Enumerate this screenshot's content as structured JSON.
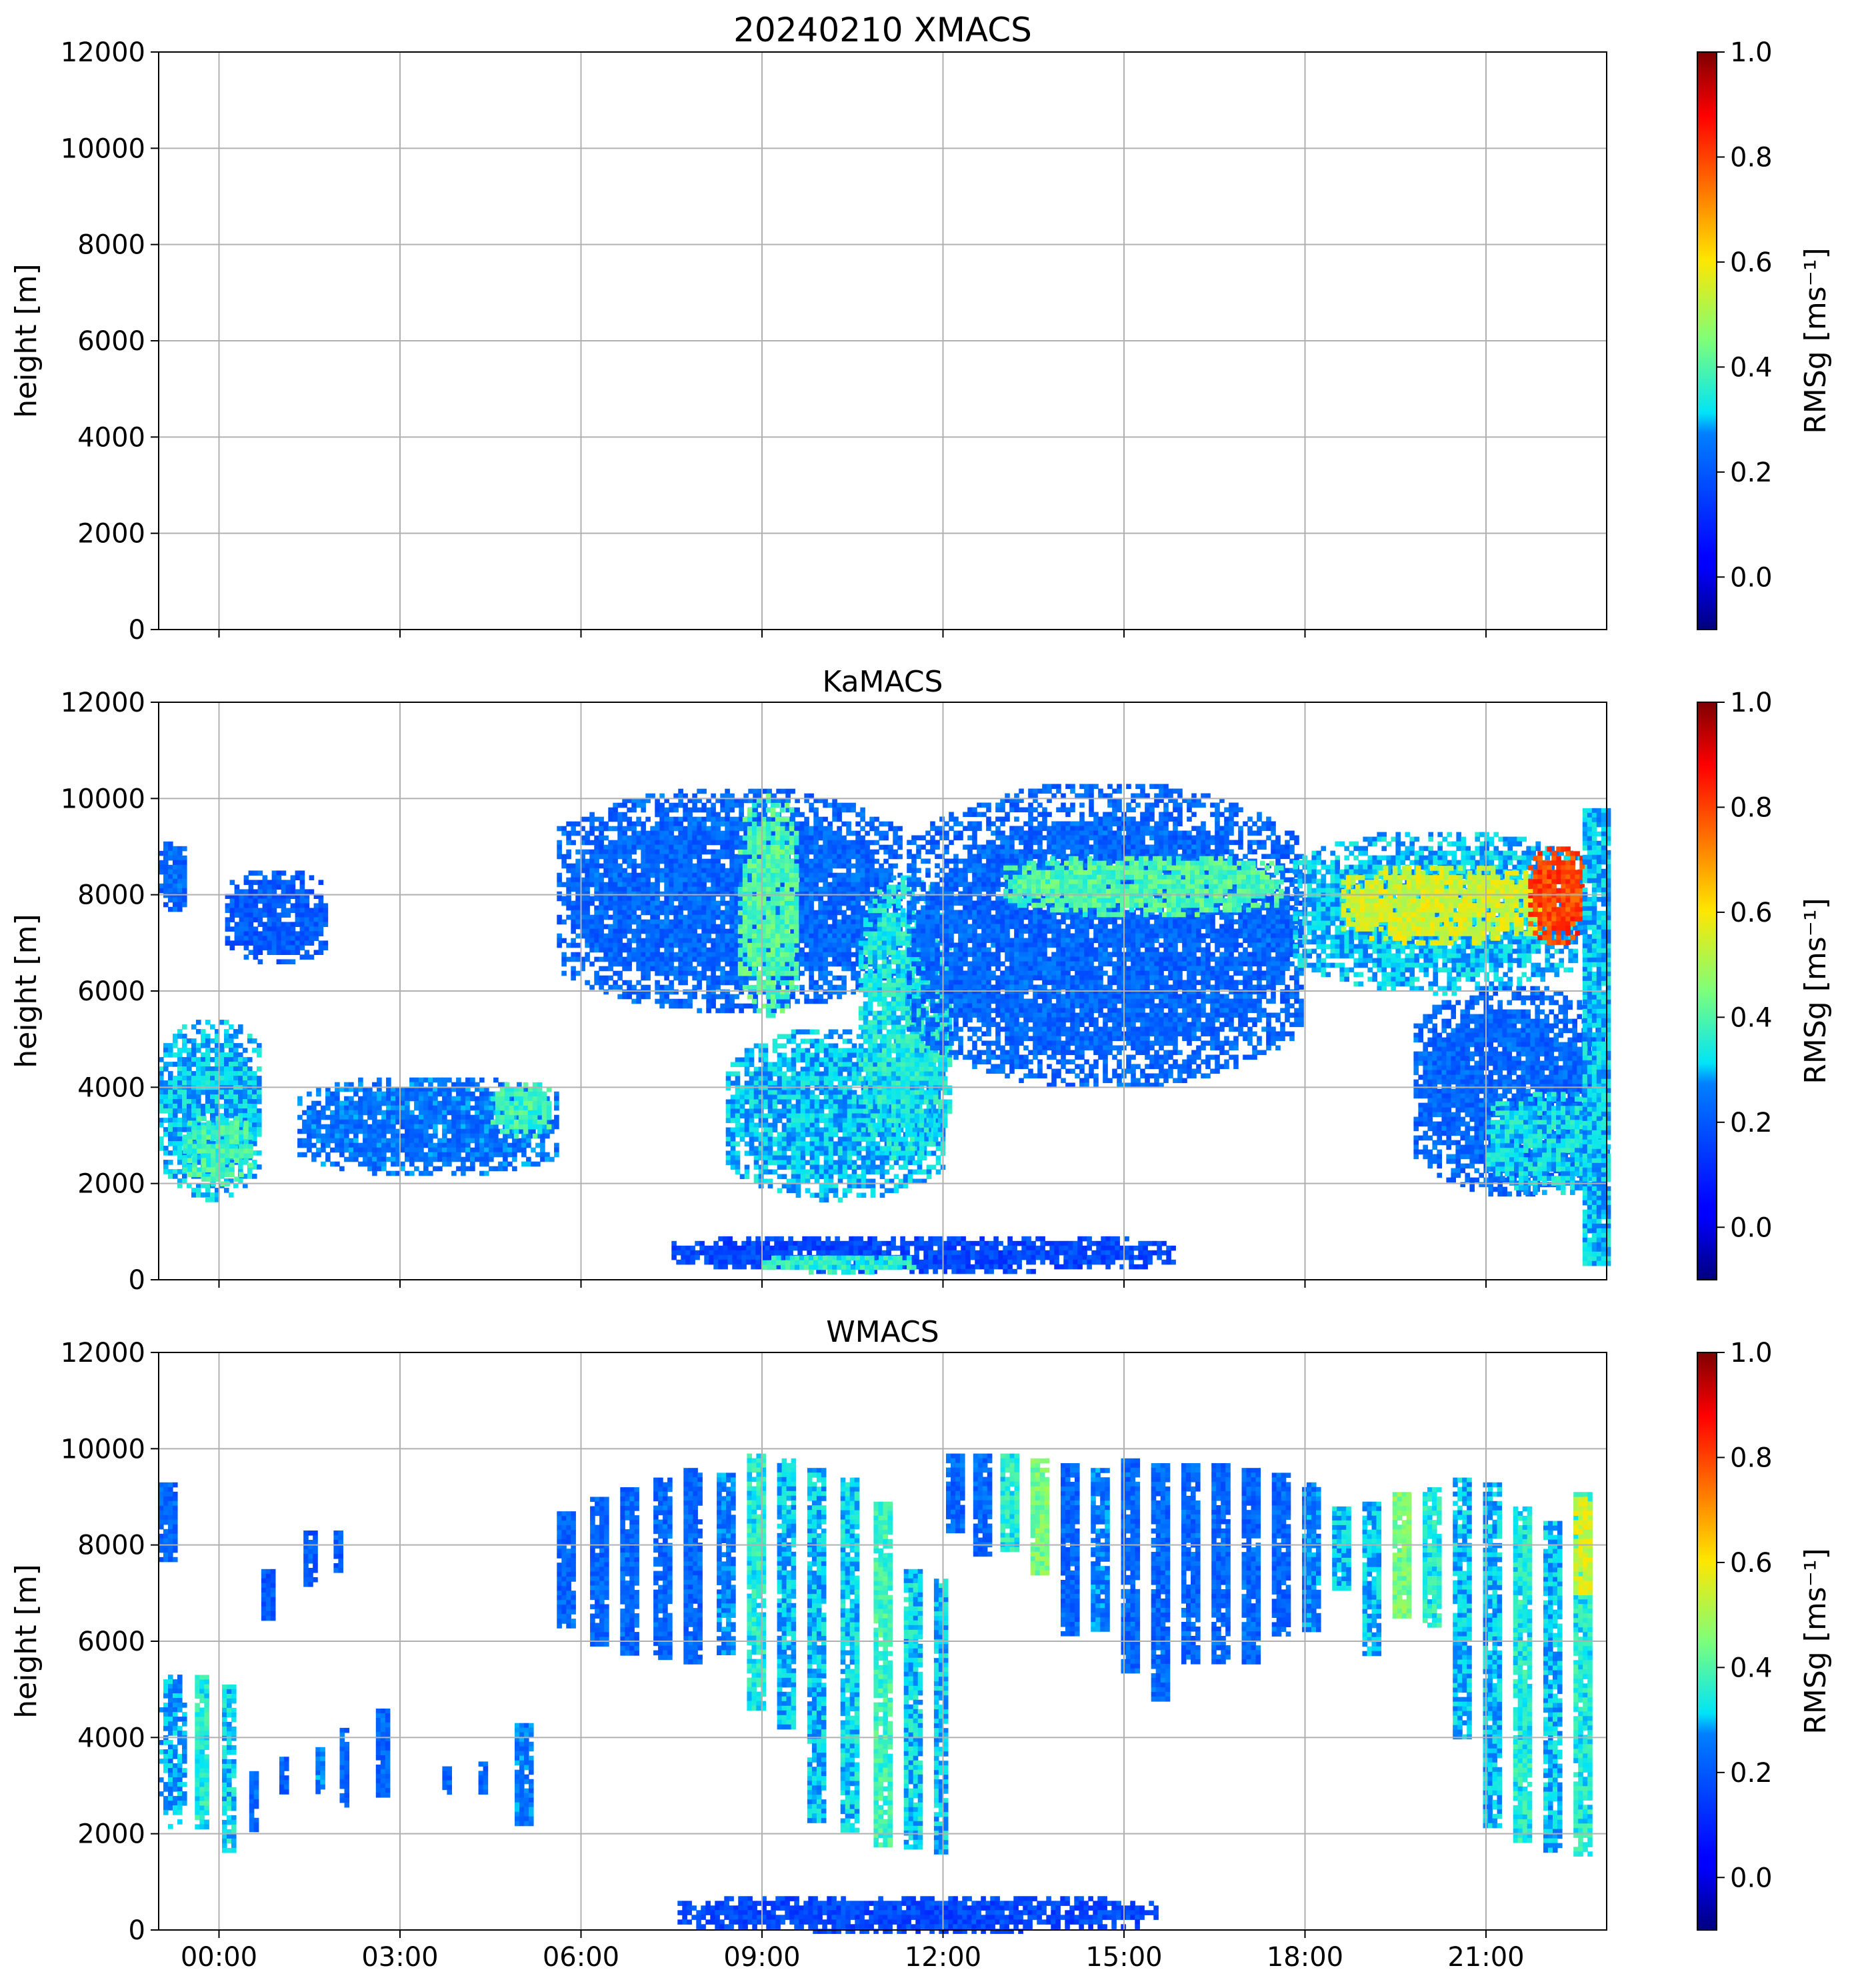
{
  "figure_title": "20240210 XMACS",
  "chart_data": [
    {
      "type": "heatmap",
      "title": "20240210 XMACS",
      "ylabel": "height [m]",
      "ylim": [
        0,
        12000
      ],
      "yticks": [
        0,
        2000,
        4000,
        6000,
        8000,
        10000,
        12000
      ],
      "xlim": [
        "2024-02-09 23:00",
        "2024-02-10 23:00"
      ],
      "xticks": [
        "00:00",
        "03:00",
        "06:00",
        "09:00",
        "12:00",
        "15:00",
        "18:00",
        "21:00"
      ],
      "show_xticklabels": false,
      "grid": true,
      "colorbar": {
        "label": "RMSg [ms⁻¹]",
        "range": [
          -0.1,
          1.0
        ],
        "ticks": [
          0.0,
          0.2,
          0.4,
          0.6,
          0.8,
          1.0
        ],
        "colormap": "jet"
      },
      "cloud_regions": []
    },
    {
      "type": "heatmap",
      "title": "KaMACS",
      "ylabel": "height [m]",
      "ylim": [
        0,
        12000
      ],
      "yticks": [
        0,
        2000,
        4000,
        6000,
        8000,
        10000,
        12000
      ],
      "xlim": [
        "2024-02-09 23:00",
        "2024-02-10 23:00"
      ],
      "xticks": [
        "00:00",
        "03:00",
        "06:00",
        "09:00",
        "12:00",
        "15:00",
        "18:00",
        "21:00"
      ],
      "show_xticklabels": false,
      "grid": true,
      "colorbar": {
        "label": "RMSg [ms⁻¹]",
        "range": [
          -0.1,
          1.0
        ],
        "ticks": [
          0.0,
          0.2,
          0.4,
          0.6,
          0.8,
          1.0
        ],
        "colormap": "jet"
      },
      "cloud_regions": [
        {
          "t0": -1.0,
          "t1": -0.55,
          "h0": 7700,
          "h1": 9300,
          "value": 0.12
        },
        {
          "t0": 0.1,
          "t1": 1.8,
          "h0": 6600,
          "h1": 8600,
          "value": 0.1
        },
        {
          "t0": -1.0,
          "t1": 0.7,
          "h0": 1700,
          "h1": 5500,
          "value": 0.2
        },
        {
          "t0": -0.6,
          "t1": 0.5,
          "h0": 2000,
          "h1": 3500,
          "value": 0.28
        },
        {
          "t0": 1.3,
          "t1": 5.6,
          "h0": 2200,
          "h1": 4300,
          "value": 0.14
        },
        {
          "t0": 4.5,
          "t1": 5.5,
          "h0": 3000,
          "h1": 4200,
          "value": 0.28
        },
        {
          "t0": 5.6,
          "t1": 11.3,
          "h0": 5600,
          "h1": 10300,
          "value": 0.12
        },
        {
          "t0": 8.6,
          "t1": 9.6,
          "h0": 5500,
          "h1": 10200,
          "value": 0.3
        },
        {
          "t0": 8.4,
          "t1": 12.0,
          "h0": 1700,
          "h1": 5300,
          "value": 0.2
        },
        {
          "t0": 10.6,
          "t1": 12.1,
          "h0": 2500,
          "h1": 8500,
          "value": 0.24
        },
        {
          "t0": 11.4,
          "t1": 17.9,
          "h0": 4000,
          "h1": 10400,
          "value": 0.12
        },
        {
          "t0": 13.0,
          "t1": 17.6,
          "h0": 7600,
          "h1": 8900,
          "value": 0.3
        },
        {
          "t0": 17.8,
          "t1": 22.6,
          "h0": 6000,
          "h1": 9400,
          "value": 0.2
        },
        {
          "t0": 18.6,
          "t1": 22.0,
          "h0": 7000,
          "h1": 8700,
          "value": 0.45
        },
        {
          "t0": 21.7,
          "t1": 22.6,
          "h0": 7000,
          "h1": 9100,
          "value": 0.7
        },
        {
          "t0": 19.8,
          "t1": 23.0,
          "h0": 1800,
          "h1": 6200,
          "value": 0.12
        },
        {
          "t0": 21.0,
          "t1": 23.0,
          "h0": 1800,
          "h1": 4000,
          "value": 0.22
        },
        {
          "t0": 22.6,
          "t1": 23.0,
          "h0": 300,
          "h1": 9800,
          "value": 0.2
        },
        {
          "t0": 7.5,
          "t1": 15.8,
          "h0": 200,
          "h1": 1000,
          "value": 0.06
        },
        {
          "t0": 9.0,
          "t1": 11.5,
          "h0": 200,
          "h1": 600,
          "value": 0.25
        }
      ]
    },
    {
      "type": "heatmap",
      "title": "WMACS",
      "ylabel": "height [m]",
      "ylim": [
        0,
        12000
      ],
      "yticks": [
        0,
        2000,
        4000,
        6000,
        8000,
        10000,
        12000
      ],
      "xlim": [
        "2024-02-09 23:00",
        "2024-02-10 23:00"
      ],
      "xticks": [
        "00:00",
        "03:00",
        "06:00",
        "09:00",
        "12:00",
        "15:00",
        "18:00",
        "21:00"
      ],
      "show_xticklabels": true,
      "grid": true,
      "colorbar": {
        "label": "RMSg [ms⁻¹]",
        "range": [
          -0.1,
          1.0
        ],
        "ticks": [
          0.0,
          0.2,
          0.4,
          0.6,
          0.8,
          1.0
        ],
        "colormap": "jet"
      },
      "cloud_regions": [
        {
          "t0": -1.0,
          "t1": -0.75,
          "h0": 7700,
          "h1": 9300,
          "value": 0.12
        },
        {
          "t0": 0.7,
          "t1": 0.9,
          "h0": 6500,
          "h1": 7500,
          "value": 0.1
        },
        {
          "t0": 1.4,
          "t1": 1.6,
          "h0": 7200,
          "h1": 8300,
          "value": 0.1
        },
        {
          "t0": 1.9,
          "t1": 2.05,
          "h0": 7500,
          "h1": 8300,
          "value": 0.1
        },
        {
          "t0": -1.0,
          "t1": -0.6,
          "h0": 2100,
          "h1": 5500,
          "value": 0.18
        },
        {
          "t0": -0.4,
          "t1": -0.2,
          "h0": 2100,
          "h1": 5300,
          "value": 0.25
        },
        {
          "t0": 0.05,
          "t1": 0.25,
          "h0": 1700,
          "h1": 5100,
          "value": 0.22
        },
        {
          "t0": 0.5,
          "t1": 0.65,
          "h0": 2100,
          "h1": 3300,
          "value": 0.12
        },
        {
          "t0": 1.0,
          "t1": 1.15,
          "h0": 2900,
          "h1": 3600,
          "value": 0.12
        },
        {
          "t0": 1.6,
          "t1": 1.75,
          "h0": 2900,
          "h1": 3800,
          "value": 0.15
        },
        {
          "t0": 2.0,
          "t1": 2.15,
          "h0": 2600,
          "h1": 4200,
          "value": 0.12
        },
        {
          "t0": 2.6,
          "t1": 2.8,
          "h0": 2800,
          "h1": 4600,
          "value": 0.12
        },
        {
          "t0": 3.7,
          "t1": 3.85,
          "h0": 2900,
          "h1": 3400,
          "value": 0.12
        },
        {
          "t0": 4.3,
          "t1": 4.45,
          "h0": 2900,
          "h1": 3500,
          "value": 0.12
        },
        {
          "t0": 4.9,
          "t1": 5.15,
          "h0": 2200,
          "h1": 4300,
          "value": 0.15
        },
        {
          "t0": 5.6,
          "t1": 5.85,
          "h0": 6300,
          "h1": 8700,
          "value": 0.12
        },
        {
          "t0": 6.15,
          "t1": 6.4,
          "h0": 5900,
          "h1": 9000,
          "value": 0.12
        },
        {
          "t0": 6.65,
          "t1": 6.9,
          "h0": 5800,
          "h1": 9200,
          "value": 0.12
        },
        {
          "t0": 7.2,
          "t1": 7.45,
          "h0": 5700,
          "h1": 9400,
          "value": 0.12
        },
        {
          "t0": 7.7,
          "t1": 7.95,
          "h0": 5600,
          "h1": 9600,
          "value": 0.12
        },
        {
          "t0": 8.25,
          "t1": 8.5,
          "h0": 5800,
          "h1": 9500,
          "value": 0.15
        },
        {
          "t0": 8.75,
          "t1": 9.0,
          "h0": 4600,
          "h1": 9900,
          "value": 0.25
        },
        {
          "t0": 9.25,
          "t1": 9.5,
          "h0": 4200,
          "h1": 9800,
          "value": 0.2
        },
        {
          "t0": 9.75,
          "t1": 10.0,
          "h0": 2300,
          "h1": 9600,
          "value": 0.2
        },
        {
          "t0": 10.3,
          "t1": 10.55,
          "h0": 2100,
          "h1": 9400,
          "value": 0.22
        },
        {
          "t0": 10.85,
          "t1": 11.1,
          "h0": 1800,
          "h1": 8900,
          "value": 0.28
        },
        {
          "t0": 11.35,
          "t1": 11.6,
          "h0": 1700,
          "h1": 7500,
          "value": 0.22
        },
        {
          "t0": 11.85,
          "t1": 12.05,
          "h0": 1600,
          "h1": 7300,
          "value": 0.2
        },
        {
          "t0": 12.05,
          "t1": 12.3,
          "h0": 8300,
          "h1": 9900,
          "value": 0.12
        },
        {
          "t0": 12.5,
          "t1": 12.75,
          "h0": 7800,
          "h1": 9900,
          "value": 0.12
        },
        {
          "t0": 12.95,
          "t1": 13.2,
          "h0": 7900,
          "h1": 9900,
          "value": 0.25
        },
        {
          "t0": 13.45,
          "t1": 13.7,
          "h0": 7400,
          "h1": 9800,
          "value": 0.35
        },
        {
          "t0": 13.95,
          "t1": 14.2,
          "h0": 6200,
          "h1": 9700,
          "value": 0.12
        },
        {
          "t0": 14.45,
          "t1": 14.7,
          "h0": 6300,
          "h1": 9600,
          "value": 0.15
        },
        {
          "t0": 14.95,
          "t1": 15.2,
          "h0": 5400,
          "h1": 9800,
          "value": 0.12
        },
        {
          "t0": 15.45,
          "t1": 15.7,
          "h0": 4800,
          "h1": 9700,
          "value": 0.12
        },
        {
          "t0": 15.95,
          "t1": 16.2,
          "h0": 5600,
          "h1": 9700,
          "value": 0.12
        },
        {
          "t0": 16.45,
          "t1": 16.7,
          "h0": 5600,
          "h1": 9700,
          "value": 0.12
        },
        {
          "t0": 16.95,
          "t1": 17.2,
          "h0": 5600,
          "h1": 9600,
          "value": 0.12
        },
        {
          "t0": 17.45,
          "t1": 17.7,
          "h0": 6200,
          "h1": 9500,
          "value": 0.12
        },
        {
          "t0": 17.95,
          "t1": 18.2,
          "h0": 6200,
          "h1": 9300,
          "value": 0.15
        },
        {
          "t0": 18.45,
          "t1": 18.7,
          "h0": 7100,
          "h1": 8800,
          "value": 0.2
        },
        {
          "t0": 18.95,
          "t1": 19.2,
          "h0": 5700,
          "h1": 8900,
          "value": 0.2
        },
        {
          "t0": 19.45,
          "t1": 19.7,
          "h0": 6500,
          "h1": 9100,
          "value": 0.35
        },
        {
          "t0": 19.95,
          "t1": 20.2,
          "h0": 6300,
          "h1": 9200,
          "value": 0.25
        },
        {
          "t0": 20.45,
          "t1": 20.7,
          "h0": 4000,
          "h1": 9400,
          "value": 0.2
        },
        {
          "t0": 20.95,
          "t1": 21.2,
          "h0": 2200,
          "h1": 9300,
          "value": 0.2
        },
        {
          "t0": 21.45,
          "t1": 21.7,
          "h0": 1900,
          "h1": 8800,
          "value": 0.25
        },
        {
          "t0": 21.95,
          "t1": 22.2,
          "h0": 1700,
          "h1": 8500,
          "value": 0.2
        },
        {
          "t0": 22.45,
          "t1": 22.7,
          "h0": 1600,
          "h1": 9100,
          "value": 0.25
        },
        {
          "t0": 22.45,
          "t1": 22.7,
          "h0": 7000,
          "h1": 9000,
          "value": 0.45
        },
        {
          "t0": 7.6,
          "t1": 15.5,
          "h0": 0,
          "h1": 800,
          "value": 0.06
        }
      ]
    }
  ]
}
